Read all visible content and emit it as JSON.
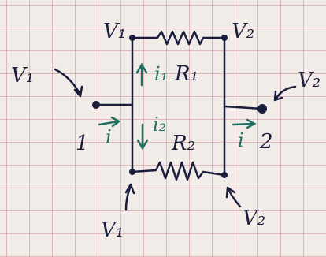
{
  "labels": {
    "top_left_node": "V₁",
    "top_right_node": "V₂",
    "left_input": "V₁",
    "right_output": "V₂",
    "bottom_left_node": "V₁",
    "bottom_right_node": "V₂",
    "resistor_1": "R₁",
    "resistor_2": "R₂",
    "current_1": "i₁",
    "current_2": "i₂",
    "input_current": "i",
    "output_current": "i",
    "input_terminal": "1",
    "output_terminal": "2"
  }
}
